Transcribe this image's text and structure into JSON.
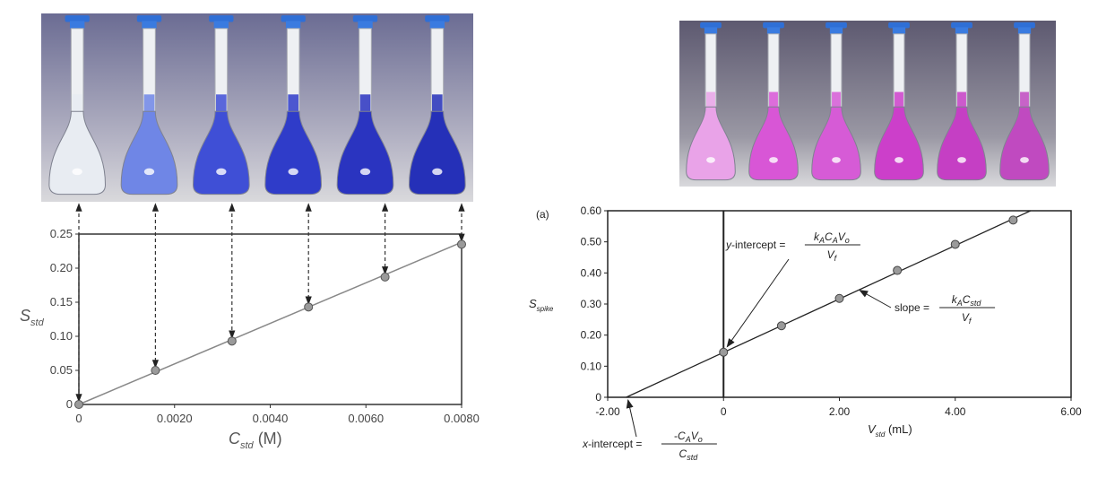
{
  "chart_data": [
    {
      "type": "scatter",
      "title": "",
      "xlabel": "C_std (M)",
      "ylabel": "S_std",
      "x_axis_label_main": "C",
      "x_axis_label_sub": "std",
      "x_axis_label_unit": " (M)",
      "y_axis_label_main": "S",
      "y_axis_label_sub": "std",
      "xlim": [
        0,
        0.008
      ],
      "ylim": [
        0,
        0.25
      ],
      "x_ticks": [
        0,
        0.002,
        0.004,
        0.006,
        0.008
      ],
      "x_tick_labels": [
        "0",
        "0.0020",
        "0.0040",
        "0.0060",
        "0.0080"
      ],
      "y_ticks": [
        0,
        0.05,
        0.1,
        0.15,
        0.2,
        0.25
      ],
      "y_tick_labels": [
        "0",
        "0.05",
        "0.10",
        "0.15",
        "0.20",
        "0.25"
      ],
      "grid": false,
      "series": [
        {
          "x": [
            0,
            0.0016,
            0.0032,
            0.0048,
            0.0064,
            0.008
          ],
          "y": [
            0,
            0.05,
            0.093,
            0.143,
            0.187,
            0.235
          ]
        }
      ],
      "fit_line": {
        "x": [
          0,
          0.008
        ],
        "y": [
          0,
          0.238
        ]
      },
      "colors": {
        "points": "#9a9a9a",
        "line": "#888888",
        "axis": "#333333"
      }
    },
    {
      "type": "scatter",
      "title": "",
      "panel_label": "(a)",
      "xlabel": "V_std (mL)",
      "ylabel": "S_spike",
      "x_axis_label_main": "V",
      "x_axis_label_sub": "std",
      "x_axis_label_unit": " (mL)",
      "y_axis_label_main": "S",
      "y_axis_label_sub": "spike",
      "xlim": [
        -2.0,
        6.0
      ],
      "ylim": [
        0,
        0.6
      ],
      "x_ticks": [
        -2,
        0,
        2,
        4,
        6
      ],
      "x_tick_labels": [
        "-2.00",
        "0",
        "2.00",
        "4.00",
        "6.00"
      ],
      "y_ticks": [
        0,
        0.1,
        0.2,
        0.3,
        0.4,
        0.5,
        0.6
      ],
      "y_tick_labels": [
        "0",
        "0.10",
        "0.20",
        "0.30",
        "0.40",
        "0.50",
        "0.60"
      ],
      "grid": false,
      "series": [
        {
          "x": [
            0,
            1,
            2,
            3,
            4,
            5
          ],
          "y": [
            0.145,
            0.23,
            0.318,
            0.408,
            0.492,
            0.57
          ]
        }
      ],
      "fit_line": {
        "x": [
          -1.68,
          5.3
        ],
        "y": [
          0,
          0.6
        ]
      },
      "annotations": {
        "y_intercept": {
          "label": "y-intercept =",
          "num": "kACAVo",
          "den": "Vf"
        },
        "slope": {
          "label": "slope =",
          "num": "kACstd",
          "den": "Vf"
        },
        "x_intercept": {
          "label": "x-intercept =",
          "num": "-CAVo",
          "den": "Cstd"
        }
      },
      "colors": {
        "points": "#9a9a9a",
        "line": "#222222",
        "axis": "#222222"
      }
    }
  ],
  "photos": {
    "left": {
      "flask_count": 6,
      "liquid_colors": [
        "#e8ecf2",
        "#6f86e6",
        "#3f4fd6",
        "#2f3cc9",
        "#2a34c0",
        "#2530b8"
      ]
    },
    "right": {
      "flask_count": 6,
      "liquid_colors": [
        "#e9a3e8",
        "#d856d6",
        "#d65bd6",
        "#cc3fca",
        "#c53fc4",
        "#c04ac0"
      ]
    }
  }
}
